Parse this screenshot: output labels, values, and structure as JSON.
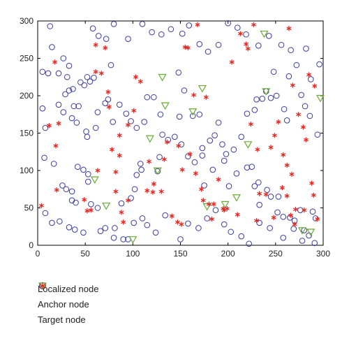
{
  "chart_data": {
    "type": "scatter",
    "title": "",
    "xlabel": "",
    "ylabel": "",
    "xlim": [
      0,
      300
    ],
    "ylim": [
      0,
      300
    ],
    "xticks": [
      0,
      50,
      100,
      150,
      200,
      250,
      300
    ],
    "yticks": [
      0,
      50,
      100,
      150,
      200,
      250,
      300
    ],
    "grid": false,
    "legend_position": "bottom-left outside",
    "colors": {
      "localized": "#3b3b9e",
      "anchor": "#6aab35",
      "target": "#e8261f"
    },
    "series": [
      {
        "name": "Localized node",
        "marker": "circle",
        "points": [
          [
            13,
            293
          ],
          [
            5,
            232
          ],
          [
            11,
            230
          ],
          [
            15,
            265
          ],
          [
            22,
            230
          ],
          [
            27,
            250
          ],
          [
            31,
            225
          ],
          [
            33,
            240
          ],
          [
            37,
            209
          ],
          [
            45,
            218
          ],
          [
            55,
            219
          ],
          [
            59,
            224
          ],
          [
            77,
            241
          ],
          [
            5,
            183
          ],
          [
            8,
            157
          ],
          [
            22,
            188
          ],
          [
            29,
            202
          ],
          [
            33,
            207
          ],
          [
            27,
            178
          ],
          [
            43,
            186
          ],
          [
            49,
            214
          ],
          [
            52,
            225
          ],
          [
            38,
            186
          ],
          [
            36,
            170
          ],
          [
            41,
            164
          ],
          [
            51,
            152
          ],
          [
            52,
            145
          ],
          [
            61,
            157
          ],
          [
            63,
            178
          ],
          [
            71,
            190
          ],
          [
            74,
            195
          ],
          [
            79,
            165
          ],
          [
            86,
            188
          ],
          [
            93,
            176
          ],
          [
            98,
            166
          ],
          [
            104,
            157
          ],
          [
            112,
            165
          ],
          [
            115,
            198
          ],
          [
            122,
            198
          ],
          [
            129,
            175
          ],
          [
            149,
            172
          ],
          [
            154,
            207
          ],
          [
            163,
            173
          ],
          [
            170,
            175
          ],
          [
            173,
            130
          ],
          [
            181,
            140
          ],
          [
            186,
            147
          ],
          [
            190,
            164
          ],
          [
            194,
            135
          ],
          [
            198,
            122
          ],
          [
            206,
            128
          ],
          [
            214,
            145
          ],
          [
            220,
            176
          ],
          [
            228,
            181
          ],
          [
            230,
            195
          ],
          [
            236,
            196
          ],
          [
            240,
            206
          ],
          [
            245,
            197
          ],
          [
            251,
            200
          ],
          [
            259,
            182
          ],
          [
            262,
            167
          ],
          [
            277,
            201
          ],
          [
            281,
            186
          ],
          [
            286,
            173
          ],
          [
            294,
            148
          ],
          [
            7,
            117
          ],
          [
            17,
            109
          ],
          [
            26,
            80
          ],
          [
            30,
            75
          ],
          [
            36,
            72
          ],
          [
            36,
            60
          ],
          [
            40,
            57
          ],
          [
            42,
            105
          ],
          [
            48,
            101
          ],
          [
            53,
            95
          ],
          [
            53,
            85
          ],
          [
            56,
            55
          ],
          [
            63,
            50
          ],
          [
            71,
            23
          ],
          [
            81,
            23
          ],
          [
            90,
            8
          ],
          [
            95,
            8
          ],
          [
            88,
            56
          ],
          [
            98,
            63
          ],
          [
            102,
            75
          ],
          [
            104,
            94
          ],
          [
            108,
            109
          ],
          [
            109,
            101
          ],
          [
            126,
            99
          ],
          [
            128,
            118
          ],
          [
            131,
            148
          ],
          [
            137,
            141
          ],
          [
            144,
            145
          ],
          [
            151,
            135
          ],
          [
            158,
            119
          ],
          [
            165,
            111
          ],
          [
            173,
            120
          ],
          [
            175,
            80
          ],
          [
            184,
            101
          ],
          [
            196,
            113
          ],
          [
            201,
            79
          ],
          [
            209,
            96
          ],
          [
            220,
            104
          ],
          [
            225,
            105
          ],
          [
            228,
            79
          ],
          [
            232,
            84
          ],
          [
            233,
            54
          ],
          [
            241,
            74
          ],
          [
            245,
            65
          ],
          [
            253,
            65
          ],
          [
            252,
            44
          ],
          [
            258,
            38
          ],
          [
            265,
            37
          ],
          [
            270,
            33
          ],
          [
            276,
            47
          ],
          [
            280,
            20
          ],
          [
            285,
            13
          ],
          [
            289,
            45
          ],
          [
            292,
            36
          ],
          [
            8,
            43
          ],
          [
            15,
            30
          ],
          [
            23,
            32
          ],
          [
            33,
            24
          ],
          [
            39,
            21
          ],
          [
            48,
            17
          ],
          [
            66,
            19
          ],
          [
            80,
            10
          ],
          [
            101,
            30
          ],
          [
            110,
            36
          ],
          [
            115,
            27
          ],
          [
            124,
            17
          ],
          [
            134,
            40
          ],
          [
            150,
            8
          ],
          [
            158,
            29
          ],
          [
            169,
            23
          ],
          [
            178,
            36
          ],
          [
            187,
            47
          ],
          [
            196,
            28
          ],
          [
            203,
            18
          ],
          [
            214,
            12
          ],
          [
            222,
            2
          ],
          [
            233,
            30
          ],
          [
            244,
            23
          ],
          [
            258,
            10
          ],
          [
            269,
            22
          ],
          [
            278,
            6
          ],
          [
            291,
            3
          ],
          [
            58,
            290
          ],
          [
            64,
            280
          ],
          [
            72,
            276
          ],
          [
            80,
            296
          ],
          [
            95,
            276
          ],
          [
            110,
            296
          ],
          [
            120,
            285
          ],
          [
            130,
            282
          ],
          [
            140,
            289
          ],
          [
            152,
            283
          ],
          [
            159,
            294
          ],
          [
            170,
            269
          ],
          [
            179,
            259
          ],
          [
            190,
            268
          ],
          [
            200,
            297
          ],
          [
            210,
            291
          ],
          [
            219,
            282
          ],
          [
            232,
            267
          ],
          [
            243,
            280
          ],
          [
            256,
            268
          ],
          [
            266,
            261
          ],
          [
            272,
            241
          ],
          [
            282,
            263
          ],
          [
            296,
            242
          ],
          [
            287,
            222
          ],
          [
            248,
            232
          ],
          [
            264,
            226
          ],
          [
            148,
            231
          ]
        ]
      },
      {
        "name": "Anchor node",
        "marker": "triangle",
        "points": [
          [
            60,
            88
          ],
          [
            72,
            53
          ],
          [
            100,
            8
          ],
          [
            118,
            143
          ],
          [
            126,
            100
          ],
          [
            131,
            225
          ],
          [
            134,
            187
          ],
          [
            163,
            179
          ],
          [
            173,
            210
          ],
          [
            178,
            52
          ],
          [
            197,
            55
          ],
          [
            209,
            64
          ],
          [
            221,
            135
          ],
          [
            240,
            206
          ],
          [
            238,
            283
          ],
          [
            278,
            20
          ],
          [
            287,
            18
          ],
          [
            297,
            197
          ]
        ]
      },
      {
        "name": "Target node",
        "marker": "asterisk",
        "points": [
          [
            4,
            53
          ],
          [
            12,
            160
          ],
          [
            18,
            245
          ],
          [
            20,
            74
          ],
          [
            19,
            133
          ],
          [
            22,
            163
          ],
          [
            49,
            61
          ],
          [
            52,
            46
          ],
          [
            56,
            47
          ],
          [
            63,
            100
          ],
          [
            75,
            185
          ],
          [
            82,
            72
          ],
          [
            86,
            147
          ],
          [
            90,
            31
          ],
          [
            95,
            161
          ],
          [
            101,
            180
          ],
          [
            103,
            225
          ],
          [
            108,
            219
          ],
          [
            115,
            73
          ],
          [
            117,
            112
          ],
          [
            121,
            71
          ],
          [
            122,
            82
          ],
          [
            130,
            72
          ],
          [
            133,
            115
          ],
          [
            136,
            138
          ],
          [
            141,
            39
          ],
          [
            147,
            31
          ],
          [
            151,
            28
          ],
          [
            155,
            265
          ],
          [
            158,
            264
          ],
          [
            164,
            201
          ],
          [
            168,
            295
          ],
          [
            172,
            75
          ],
          [
            177,
            198
          ],
          [
            180,
            55
          ],
          [
            183,
            35
          ],
          [
            190,
            88
          ],
          [
            196,
            47
          ],
          [
            199,
            49
          ],
          [
            204,
            245
          ],
          [
            213,
            283
          ],
          [
            219,
            269
          ],
          [
            221,
            263
          ],
          [
            224,
            162
          ],
          [
            227,
            295
          ],
          [
            231,
            128
          ],
          [
            233,
            69
          ],
          [
            240,
            68
          ],
          [
            245,
            131
          ],
          [
            249,
            147
          ],
          [
            253,
            165
          ],
          [
            257,
            77
          ],
          [
            262,
            66
          ],
          [
            266,
            40
          ],
          [
            271,
            48
          ],
          [
            280,
            47
          ],
          [
            285,
            228
          ],
          [
            288,
            83
          ],
          [
            291,
            213
          ],
          [
            294,
            35
          ],
          [
            61,
            232
          ],
          [
            61,
            268
          ],
          [
            67,
            230
          ],
          [
            71,
            264
          ],
          [
            74,
            205
          ],
          [
            78,
            128
          ],
          [
            82,
            98
          ],
          [
            86,
            120
          ],
          [
            88,
            44
          ],
          [
            95,
            60
          ],
          [
            148,
            133
          ],
          [
            152,
            101
          ],
          [
            160,
            122
          ],
          [
            166,
            96
          ],
          [
            174,
            60
          ],
          [
            185,
            55
          ],
          [
            195,
            49
          ],
          [
            210,
            41
          ],
          [
            230,
            33
          ],
          [
            248,
            37
          ],
          [
            264,
            290
          ],
          [
            268,
            214
          ],
          [
            274,
            175
          ],
          [
            279,
            158
          ],
          [
            282,
            141
          ],
          [
            258,
            121
          ],
          [
            262,
            107
          ],
          [
            267,
            95
          ],
          [
            270,
            28
          ],
          [
            290,
            67
          ]
        ]
      }
    ]
  },
  "legend": {
    "items": [
      {
        "label": "Localized node",
        "marker": "circle"
      },
      {
        "label": "Anchor node",
        "marker": "triangle"
      },
      {
        "label": "Target node",
        "marker": "asterisk"
      }
    ]
  }
}
